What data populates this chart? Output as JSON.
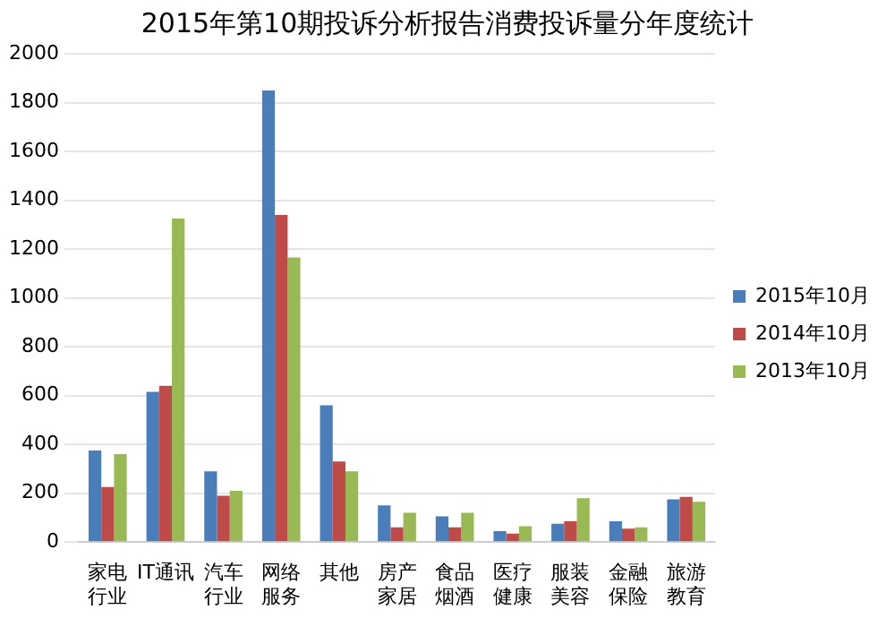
{
  "chart_data": {
    "type": "bar",
    "title": "2015年第10期投诉分析报告消费投诉量分年度统计",
    "categories": [
      "家电行业",
      "IT通讯",
      "汽车行业",
      "网络服务",
      "其他",
      "房产家居",
      "食品烟酒",
      "医疗健康",
      "服装美容",
      "金融保险",
      "旅游教育"
    ],
    "series": [
      {
        "name": "2015年10月",
        "color": "#4a7ebb",
        "values": [
          375,
          615,
          290,
          1850,
          560,
          150,
          105,
          45,
          75,
          85,
          175
        ]
      },
      {
        "name": "2014年10月",
        "color": "#be4b48",
        "values": [
          225,
          640,
          190,
          1340,
          330,
          60,
          60,
          35,
          85,
          55,
          185
        ]
      },
      {
        "name": "2013年10月",
        "color": "#98b954",
        "values": [
          360,
          1325,
          210,
          1165,
          290,
          120,
          120,
          65,
          180,
          60,
          165
        ]
      }
    ],
    "ylim": [
      0,
      2000
    ],
    "yticks": [
      0,
      200,
      400,
      600,
      800,
      1000,
      1200,
      1400,
      1600,
      1800,
      2000
    ],
    "grid": "y",
    "legend": "right"
  }
}
